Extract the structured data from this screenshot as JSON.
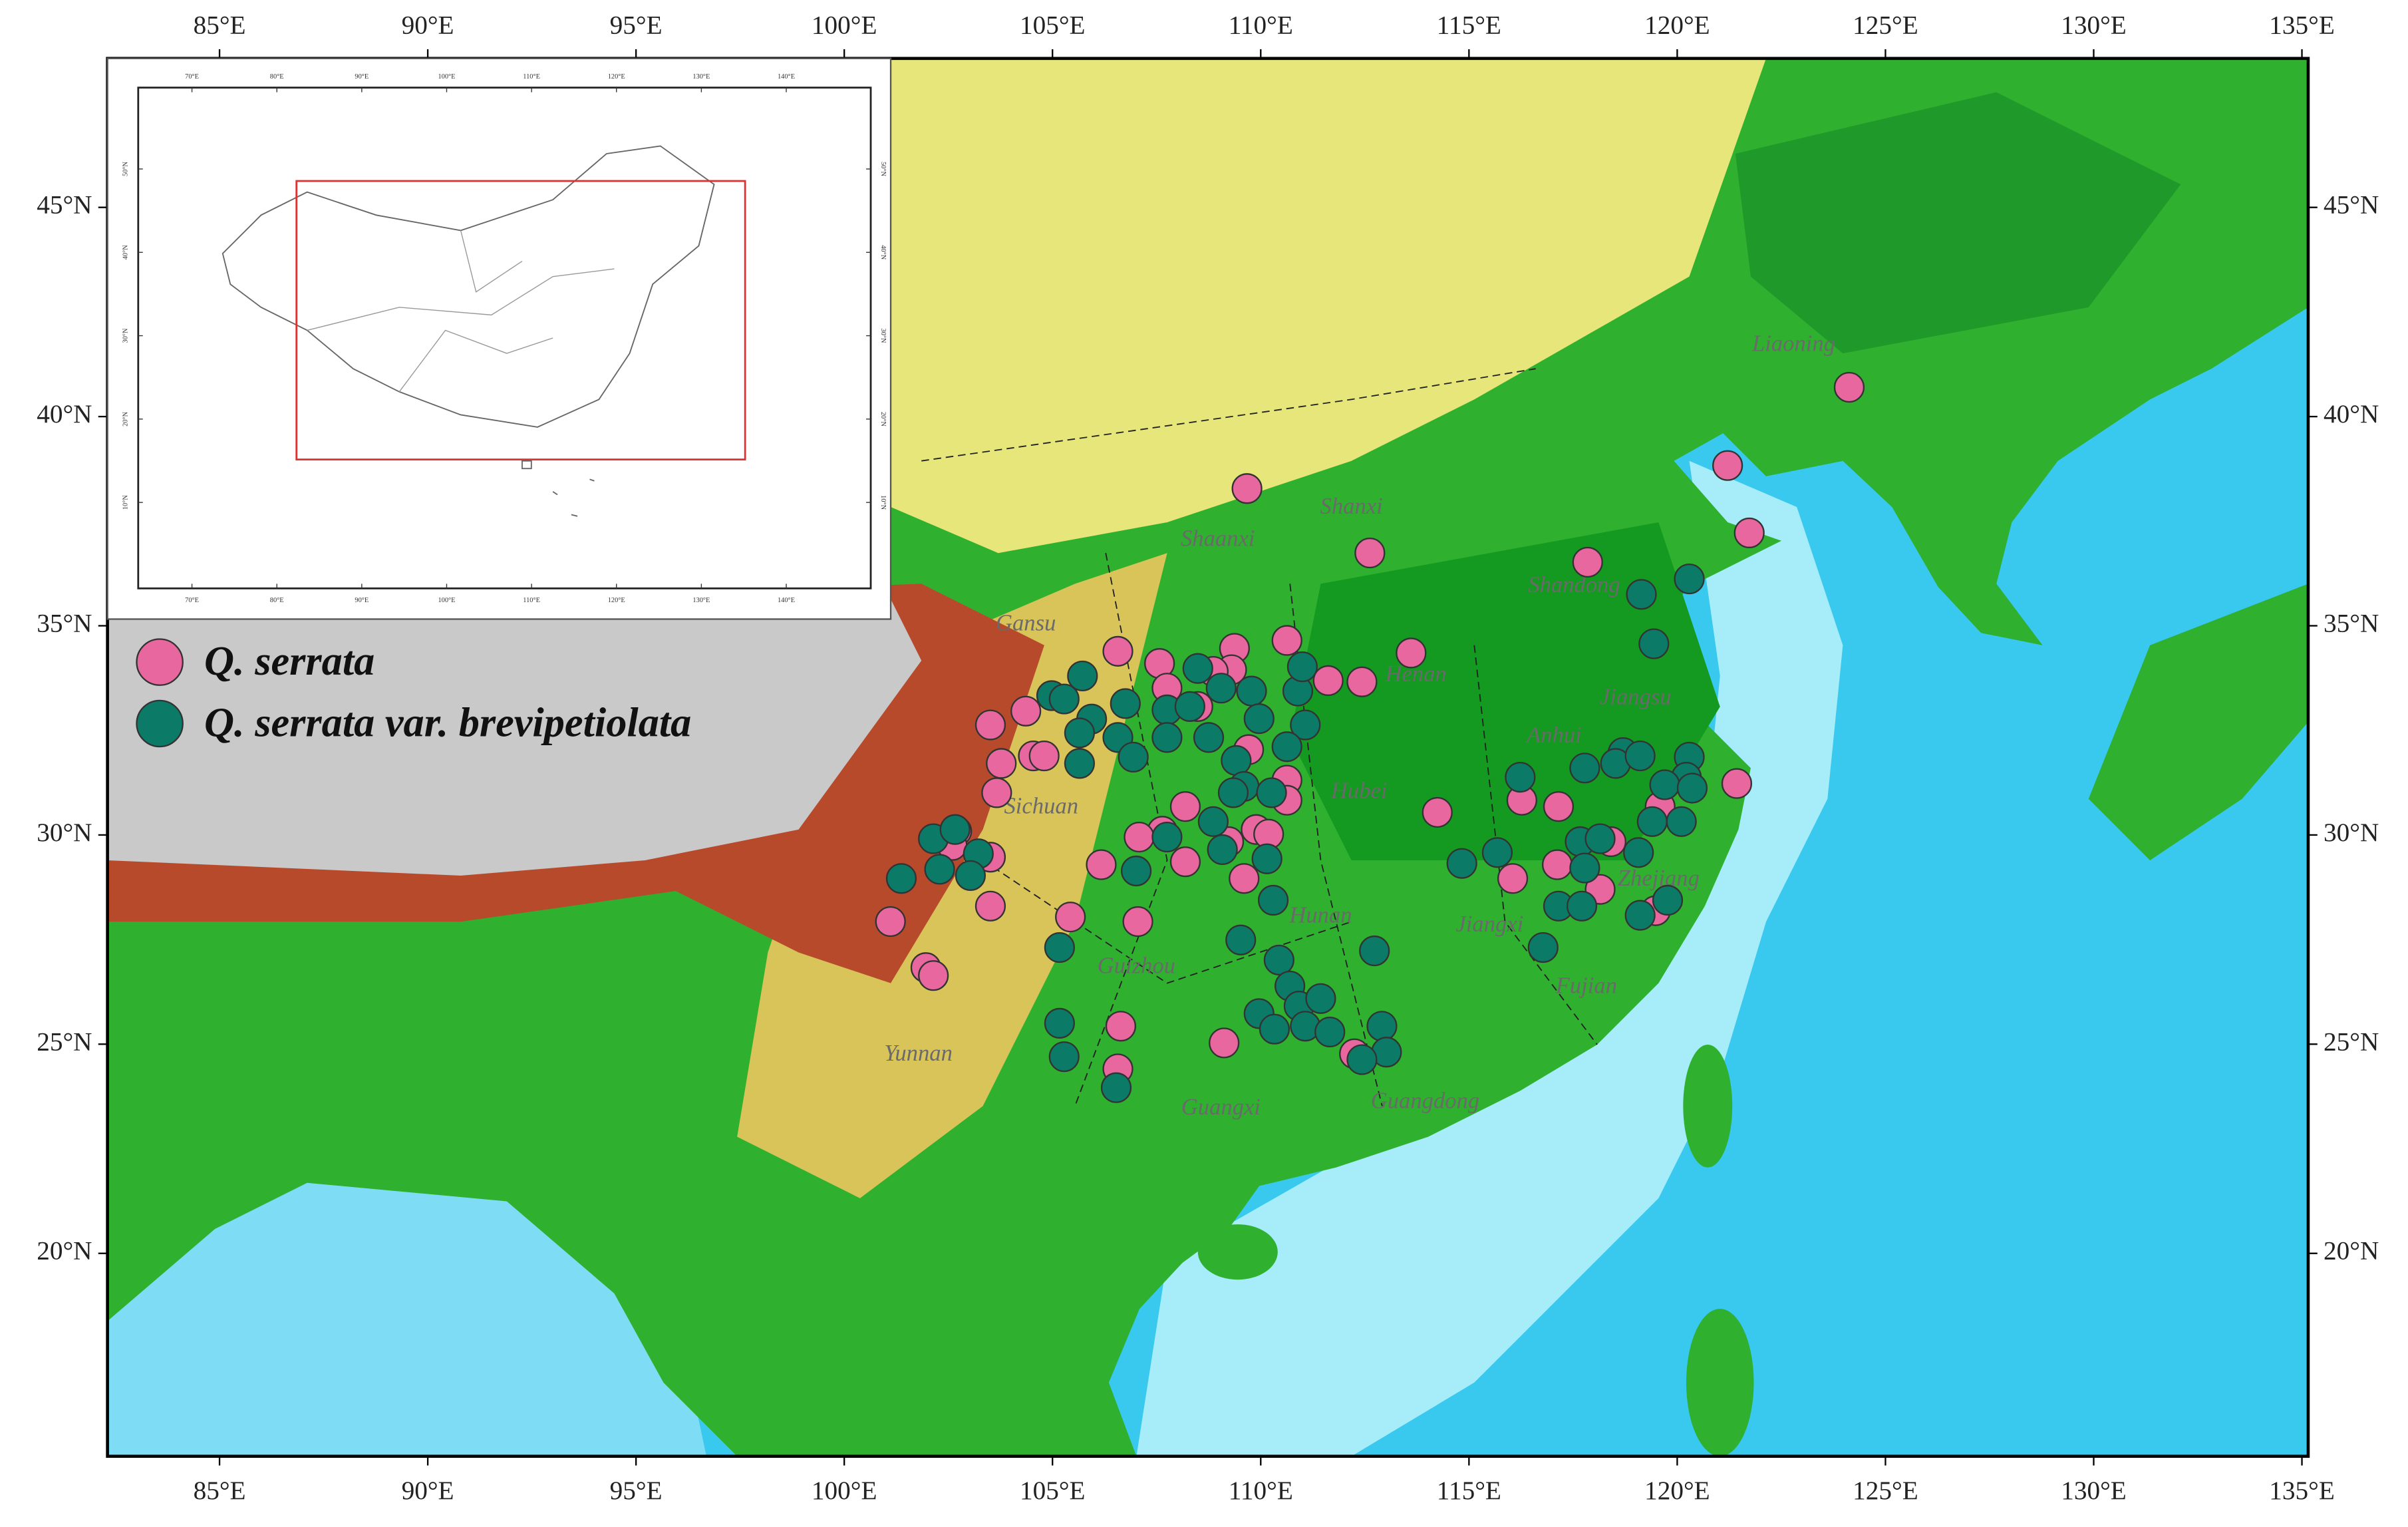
{
  "map": {
    "xlim": [
      82.31,
      135.15
    ],
    "ylim": [
      15.15,
      48.56
    ],
    "xticks": [
      {
        "value": 85,
        "label": "85°E"
      },
      {
        "value": 90,
        "label": "90°E"
      },
      {
        "value": 95,
        "label": "95°E"
      },
      {
        "value": 100,
        "label": "100°E"
      },
      {
        "value": 105,
        "label": "105°E"
      },
      {
        "value": 110,
        "label": "110°E"
      },
      {
        "value": 115,
        "label": "115°E"
      },
      {
        "value": 120,
        "label": "120°E"
      },
      {
        "value": 125,
        "label": "125°E"
      },
      {
        "value": 130,
        "label": "130°E"
      },
      {
        "value": 135,
        "label": "135°E"
      }
    ],
    "yticks": [
      {
        "value": 20,
        "label": "20°N"
      },
      {
        "value": 25,
        "label": "25°N"
      },
      {
        "value": 30,
        "label": "30°N"
      },
      {
        "value": 35,
        "label": "35°N"
      },
      {
        "value": 40,
        "label": "40°N"
      },
      {
        "value": 45,
        "label": "45°N"
      }
    ],
    "series": [
      {
        "name": "Q. serrata",
        "color": "#e9679f",
        "x": [
          109.67,
          112.62,
          124.13,
          121.21,
          121.73,
          117.85,
          121.43,
          113.61,
          114.24,
          116.27,
          117.15,
          116.05,
          117.12,
          118.15,
          119.59,
          119.48,
          118.41,
          110.63,
          111.62,
          112.43,
          109.37,
          109.3,
          107.57,
          106.57,
          103.51,
          104.36,
          104.54,
          103.77,
          104.8,
          103.66,
          109.71,
          110.63,
          110.63,
          109.89,
          110.19,
          108.19,
          107.64,
          107.08,
          108.19,
          107.05,
          106.17,
          105.43,
          103.51,
          103.51,
          102.7,
          102.59,
          101.11,
          101.96,
          102.14,
          106.64,
          106.57,
          109.12,
          112.25,
          109.23,
          109.6,
          108.86,
          108.49,
          107.75
        ],
        "y": [
          38.28,
          36.74,
          40.7,
          38.83,
          37.22,
          36.52,
          31.23,
          34.35,
          30.54,
          30.83,
          30.68,
          28.96,
          29.29,
          28.7,
          30.68,
          28.19,
          29.84,
          34.65,
          33.69,
          33.66,
          34.46,
          33.95,
          34.1,
          34.39,
          32.63,
          32.96,
          31.89,
          31.71,
          31.89,
          31.01,
          32.04,
          31.31,
          30.83,
          30.13,
          30.02,
          30.68,
          30.09,
          29.95,
          29.36,
          27.93,
          29.29,
          28.04,
          28.3,
          29.47,
          30.09,
          29.75,
          27.93,
          26.83,
          26.64,
          25.43,
          24.41,
          25.03,
          24.77,
          29.84,
          28.96,
          33.91,
          33.07,
          33.51
        ]
      },
      {
        "name": "Q. serrata var. brevipetiolata",
        "color": "#0b7b68",
        "x": [
          120.29,
          119.14,
          119.44,
          118.7,
          118.52,
          119.11,
          120.29,
          120.22,
          119.7,
          120.36,
          120.1,
          119.4,
          119.07,
          119.77,
          119.11,
          117.78,
          116.23,
          117.67,
          118.15,
          117.78,
          117.15,
          117.71,
          116.78,
          115.68,
          114.83,
          104.98,
          105.72,
          105.28,
          105.94,
          106.75,
          106.57,
          106.94,
          105.65,
          108.49,
          109.05,
          109.78,
          110.89,
          111.0,
          109.96,
          111.07,
          110.63,
          107.75,
          108.3,
          107.75,
          108.75,
          109.41,
          109.6,
          110.26,
          109.34,
          107.75,
          108.86,
          109.08,
          110.15,
          110.3,
          109.52,
          110.44,
          110.7,
          110.92,
          111.44,
          109.96,
          110.33,
          111.07,
          111.66,
          112.73,
          112.91,
          113.02,
          112.43,
          105.17,
          105.28,
          106.53,
          105.17,
          107.01,
          101.37,
          102.14,
          102.66,
          102.29,
          103.22,
          103.03,
          105.65
        ],
        "y": [
          36.12,
          35.75,
          34.57,
          31.97,
          31.71,
          31.89,
          31.86,
          31.38,
          31.2,
          31.12,
          30.32,
          30.32,
          29.58,
          28.44,
          28.08,
          31.6,
          31.38,
          29.84,
          29.91,
          29.21,
          28.3,
          28.3,
          27.31,
          29.58,
          29.32,
          33.33,
          33.8,
          33.25,
          32.77,
          33.14,
          32.33,
          31.86,
          31.71,
          33.98,
          33.51,
          33.44,
          33.44,
          34.02,
          32.78,
          32.63,
          32.11,
          32.99,
          33.07,
          32.33,
          32.33,
          31.78,
          31.16,
          31.01,
          31.01,
          29.95,
          30.32,
          29.65,
          29.43,
          28.44,
          27.49,
          27.01,
          26.39,
          25.91,
          26.09,
          25.73,
          25.36,
          25.43,
          25.29,
          27.23,
          25.43,
          24.81,
          24.63,
          25.5,
          24.7,
          23.96,
          27.31,
          29.14,
          28.96,
          29.91,
          30.13,
          29.18,
          29.55,
          29.03,
          32.44
        ]
      }
    ],
    "labels": [
      "Liaoning",
      "Shanxi",
      "Shaanxi",
      "Shandong",
      "Gansu",
      "Henan",
      "Jiangsu",
      "Anhui",
      "Sichuan",
      "Hubei",
      "Hunan",
      "Jiangxi",
      "Zhejiang",
      "Guizhou",
      "Fujian",
      "Yunnan",
      "Guangxi",
      "Guangdong"
    ]
  },
  "inset": {
    "xlim": [
      63.67,
      149.95
    ],
    "ylim": [
      -0.31,
      59.76
    ],
    "xticks": [
      {
        "value": 70,
        "label": "70°E"
      },
      {
        "value": 80,
        "label": "80°E"
      },
      {
        "value": 90,
        "label": "90°E"
      },
      {
        "value": 100,
        "label": "100°E"
      },
      {
        "value": 110,
        "label": "110°E"
      },
      {
        "value": 120,
        "label": "120°E"
      },
      {
        "value": 130,
        "label": "130°E"
      },
      {
        "value": 140,
        "label": "140°E"
      }
    ],
    "yticks": [
      {
        "value": 10,
        "label": "10°N"
      },
      {
        "value": 20,
        "label": "20°N"
      },
      {
        "value": 30,
        "label": "30°N"
      },
      {
        "value": 40,
        "label": "40°N"
      },
      {
        "value": 50,
        "label": "50°N"
      }
    ]
  }
}
